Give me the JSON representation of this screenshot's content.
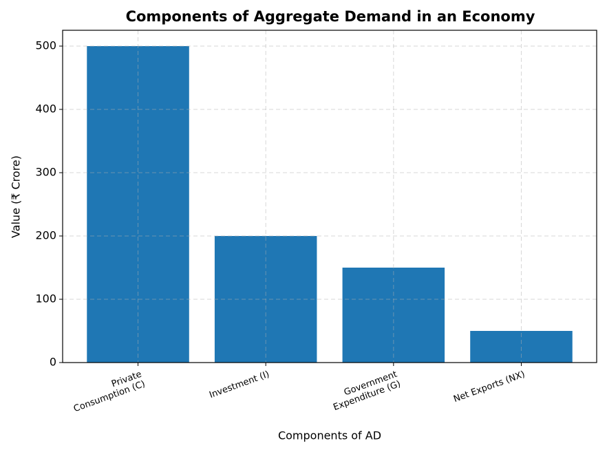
{
  "chart_data": {
    "type": "bar",
    "title": "Components of Aggregate Demand in an Economy",
    "x_label": "Components of AD",
    "y_label": "Value (₹ Crore)",
    "categories": [
      "Private\nConsumption (C)",
      "Investment (I)",
      "Government\nExpenditure (G)",
      "Net Exports (NX)"
    ],
    "values": [
      500,
      200,
      150,
      50
    ],
    "color": "#1f77b4",
    "ylim": [
      0,
      525
    ],
    "yticks": [
      0,
      100,
      200,
      300,
      400,
      500
    ],
    "grid": true
  }
}
